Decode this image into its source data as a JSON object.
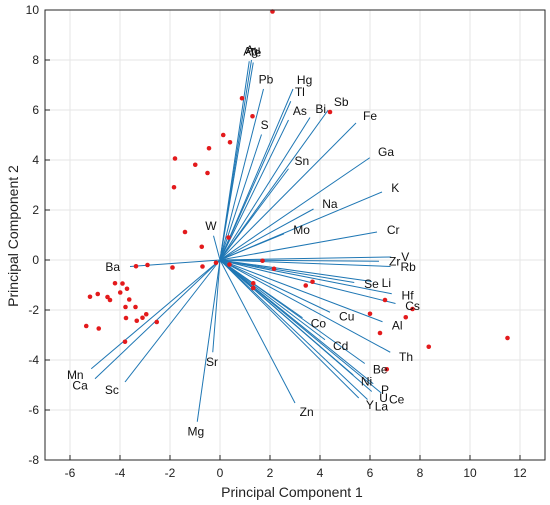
{
  "chart_data": {
    "type": "scatter",
    "subtype": "pca-biplot",
    "title": "",
    "xlabel": "Principal Component 1",
    "ylabel": "Principal Component 2",
    "xlim": [
      -7,
      13
    ],
    "ylim": [
      -8,
      10
    ],
    "xticks": [
      -6,
      -4,
      -2,
      0,
      2,
      4,
      6,
      8,
      10,
      12
    ],
    "yticks": [
      -8,
      -6,
      -4,
      -2,
      0,
      2,
      4,
      6,
      8,
      10
    ],
    "grid": true,
    "colors": {
      "loadings": "#1f77b4",
      "scores": "#e31a1c",
      "grid": "#e6e6e6",
      "axes": "#262626"
    },
    "loadings": [
      {
        "label": "Au",
        "x": 1.26,
        "y": 8.0
      },
      {
        "label": "Ag",
        "x": 1.17,
        "y": 7.95
      },
      {
        "label": "Te",
        "x": 1.33,
        "y": 7.9
      },
      {
        "label": "Pb",
        "x": 1.74,
        "y": 6.84
      },
      {
        "label": "Hg",
        "x": 2.92,
        "y": 6.84
      },
      {
        "label": "Tl",
        "x": 2.83,
        "y": 6.35
      },
      {
        "label": "Sb",
        "x": 4.32,
        "y": 5.99
      },
      {
        "label": "Bi",
        "x": 3.6,
        "y": 5.7
      },
      {
        "label": "As",
        "x": 2.74,
        "y": 5.6
      },
      {
        "label": "Fe",
        "x": 5.44,
        "y": 5.48
      },
      {
        "label": "S",
        "x": 1.66,
        "y": 5.02
      },
      {
        "label": "Ga",
        "x": 5.99,
        "y": 4.09
      },
      {
        "label": "Sn",
        "x": 2.74,
        "y": 3.65
      },
      {
        "label": "K",
        "x": 6.48,
        "y": 2.72
      },
      {
        "label": "Na",
        "x": 3.74,
        "y": 2.04
      },
      {
        "label": "Cr",
        "x": 6.28,
        "y": 1.12
      },
      {
        "label": "Mo",
        "x": 2.56,
        "y": 1.05
      },
      {
        "label": "W",
        "x": -0.26,
        "y": 0.97
      },
      {
        "label": "V",
        "x": 6.85,
        "y": 0.12
      },
      {
        "label": "Zr",
        "x": 6.36,
        "y": -0.05
      },
      {
        "label": "Rb",
        "x": 6.82,
        "y": -0.26
      },
      {
        "label": "Ba",
        "x": -3.6,
        "y": -0.26
      },
      {
        "label": "Li",
        "x": 6.07,
        "y": -0.86
      },
      {
        "label": "Se",
        "x": 5.37,
        "y": -0.9
      },
      {
        "label": "Hf",
        "x": 6.87,
        "y": -1.35
      },
      {
        "label": "Cs",
        "x": 7.02,
        "y": -1.74
      },
      {
        "label": "Cu",
        "x": 4.4,
        "y": -2.09
      },
      {
        "label": "Al",
        "x": 6.5,
        "y": -2.47
      },
      {
        "label": "Co",
        "x": 3.3,
        "y": -2.31
      },
      {
        "label": "Cd",
        "x": 4.2,
        "y": -3.19
      },
      {
        "label": "Th",
        "x": 6.81,
        "y": -3.69
      },
      {
        "label": "Sr",
        "x": -0.29,
        "y": -3.69
      },
      {
        "label": "Be",
        "x": 5.79,
        "y": -4.14
      },
      {
        "label": "Mn",
        "x": -5.15,
        "y": -4.35
      },
      {
        "label": "Ca",
        "x": -5.0,
        "y": -4.75
      },
      {
        "label": "Ni",
        "x": 5.33,
        "y": -4.6
      },
      {
        "label": "Sc",
        "x": -3.8,
        "y": -4.88
      },
      {
        "label": "P",
        "x": 6.13,
        "y": -4.95
      },
      {
        "label": "U",
        "x": 6.07,
        "y": -5.26
      },
      {
        "label": "Ce",
        "x": 6.45,
        "y": -5.32
      },
      {
        "label": "Y",
        "x": 5.55,
        "y": -5.52
      },
      {
        "label": "La",
        "x": 5.9,
        "y": -5.58
      },
      {
        "label": "Zn",
        "x": 3.0,
        "y": -5.72
      },
      {
        "label": "Mg",
        "x": -0.91,
        "y": -6.47
      }
    ],
    "scores": [
      {
        "x": 2.1,
        "y": 9.94
      },
      {
        "x": 4.4,
        "y": 5.92
      },
      {
        "x": 0.88,
        "y": 6.47
      },
      {
        "x": 1.3,
        "y": 5.75
      },
      {
        "x": 0.13,
        "y": 5.0
      },
      {
        "x": 0.4,
        "y": 4.71
      },
      {
        "x": -0.44,
        "y": 4.47
      },
      {
        "x": -1.8,
        "y": 4.06
      },
      {
        "x": -0.99,
        "y": 3.81
      },
      {
        "x": -0.5,
        "y": 3.48
      },
      {
        "x": -1.84,
        "y": 2.91
      },
      {
        "x": -1.4,
        "y": 1.12
      },
      {
        "x": -0.73,
        "y": 0.53
      },
      {
        "x": 0.34,
        "y": 0.9
      },
      {
        "x": -2.9,
        "y": -0.2
      },
      {
        "x": -1.9,
        "y": -0.3
      },
      {
        "x": -0.7,
        "y": -0.26
      },
      {
        "x": -0.16,
        "y": -0.11
      },
      {
        "x": 0.38,
        "y": -0.18
      },
      {
        "x": 1.7,
        "y": -0.03
      },
      {
        "x": 2.16,
        "y": -0.35
      },
      {
        "x": -3.36,
        "y": -0.25
      },
      {
        "x": 1.33,
        "y": -0.93
      },
      {
        "x": 1.33,
        "y": -1.12
      },
      {
        "x": 3.43,
        "y": -1.02
      },
      {
        "x": 3.7,
        "y": -0.87
      },
      {
        "x": 6.6,
        "y": -1.6
      },
      {
        "x": 7.43,
        "y": -2.29
      },
      {
        "x": 7.7,
        "y": -1.96
      },
      {
        "x": 6.4,
        "y": -2.92
      },
      {
        "x": 6.0,
        "y": -2.15
      },
      {
        "x": 8.35,
        "y": -3.47
      },
      {
        "x": 11.5,
        "y": -3.12
      },
      {
        "x": 6.67,
        "y": -4.37
      },
      {
        "x": -3.9,
        "y": -0.94
      },
      {
        "x": -4.2,
        "y": -0.93
      },
      {
        "x": -3.72,
        "y": -1.15
      },
      {
        "x": -3.99,
        "y": -1.3
      },
      {
        "x": -4.5,
        "y": -1.48
      },
      {
        "x": -4.4,
        "y": -1.6
      },
      {
        "x": -3.63,
        "y": -1.58
      },
      {
        "x": -4.89,
        "y": -1.36
      },
      {
        "x": -5.2,
        "y": -1.47
      },
      {
        "x": -3.78,
        "y": -1.88
      },
      {
        "x": -3.38,
        "y": -1.88
      },
      {
        "x": -3.1,
        "y": -2.31
      },
      {
        "x": -2.95,
        "y": -2.17
      },
      {
        "x": -3.76,
        "y": -2.32
      },
      {
        "x": -3.33,
        "y": -2.43
      },
      {
        "x": -2.53,
        "y": -2.48
      },
      {
        "x": -5.35,
        "y": -2.64
      },
      {
        "x": -4.85,
        "y": -2.74
      },
      {
        "x": -3.8,
        "y": -3.27
      }
    ]
  }
}
